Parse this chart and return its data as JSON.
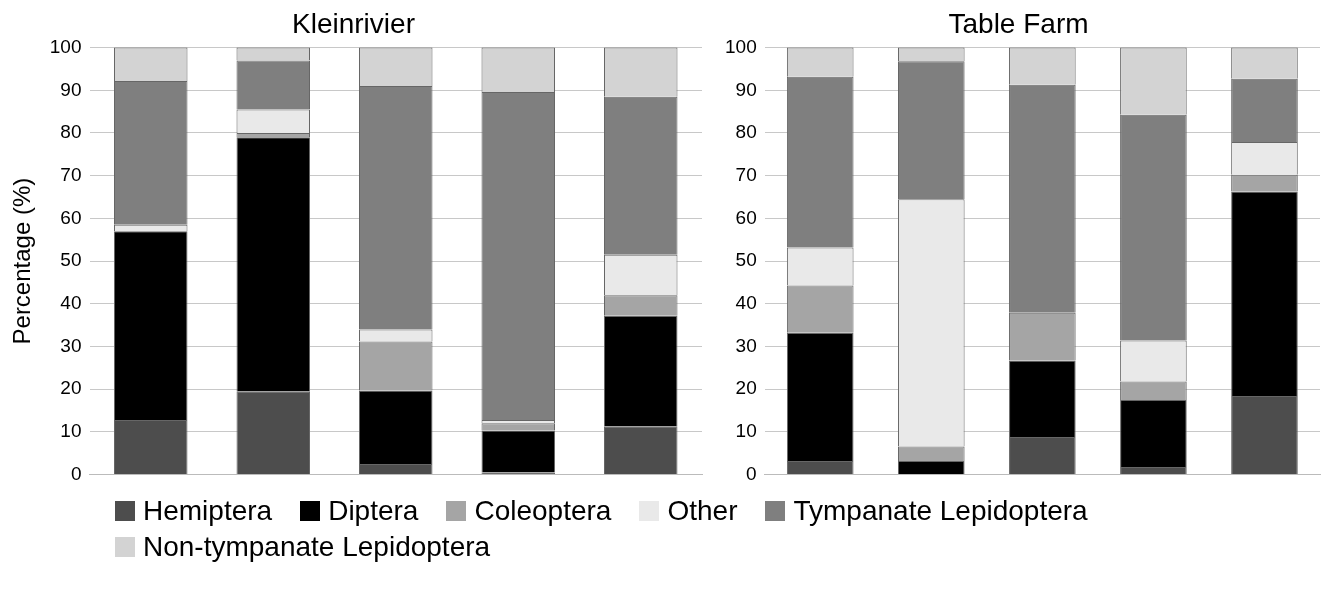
{
  "chart_data": [
    {
      "type": "bar",
      "title": "Kleinrivier",
      "ylabel": "Percentage (%)",
      "categories": [
        null,
        null,
        null,
        null,
        null
      ],
      "stacked": true,
      "ylim": [
        0,
        100
      ],
      "yticks": [
        0,
        10,
        20,
        30,
        40,
        50,
        60,
        70,
        80,
        90,
        100
      ],
      "grid": "y",
      "legend": "bottom",
      "series": [
        {
          "name": "Hemiptera",
          "color": "#4d4d4d",
          "values": [
            12.8,
            19.5,
            2.5,
            0.5,
            11.3
          ]
        },
        {
          "name": "Diptera",
          "color": "#000000",
          "values": [
            44.2,
            59.5,
            17.2,
            9.8,
            25.9
          ]
        },
        {
          "name": "Coleoptera",
          "color": "#a5a5a5",
          "values": [
            0,
            1,
            11.5,
            1.7,
            4.8
          ]
        },
        {
          "name": "Other",
          "color": "#e9e9e9",
          "values": [
            1.5,
            5.5,
            2.8,
            0.8,
            9.5
          ]
        },
        {
          "name": "Tympanate Lepidoptera",
          "color": "#7f7f7f",
          "values": [
            33.7,
            11.5,
            57,
            76.8,
            37
          ]
        },
        {
          "name": "Non-tympanate Lepidoptera",
          "color": "#d3d3d3",
          "values": [
            7.8,
            3,
            9,
            10.4,
            11.5
          ]
        }
      ]
    },
    {
      "type": "bar",
      "title": "Table Farm",
      "categories": [
        null,
        null,
        null,
        null,
        null
      ],
      "stacked": true,
      "ylim": [
        0,
        100
      ],
      "yticks": [
        0,
        10,
        20,
        30,
        40,
        50,
        60,
        70,
        80,
        90,
        100
      ],
      "grid": "y",
      "series": [
        {
          "color": "#4d4d4d",
          "values": [
            3.2,
            0,
            8.8,
            1.8,
            18.4
          ]
        },
        {
          "color": "#000000",
          "values": [
            30,
            3.2,
            17.9,
            15.7,
            47.9
          ]
        },
        {
          "color": "#a5a5a5",
          "values": [
            11.1,
            3.4,
            11.2,
            4.3,
            3.9
          ]
        },
        {
          "color": "#e9e9e9",
          "values": [
            8.9,
            57.9,
            0,
            9.6,
            7.7
          ]
        },
        {
          "color": "#7f7f7f",
          "values": [
            40,
            32.3,
            53.4,
            52.9,
            14.8
          ]
        },
        {
          "color": "#d3d3d3",
          "values": [
            6.8,
            3.2,
            8.7,
            15.7,
            7.3
          ]
        }
      ]
    }
  ]
}
